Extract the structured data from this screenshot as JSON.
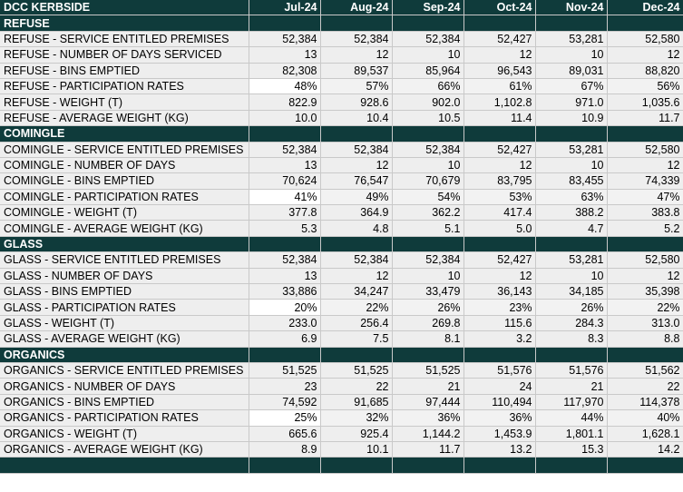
{
  "title": "DCC KERBSIDE",
  "months": [
    "Jul-24",
    "Aug-24",
    "Sep-24",
    "Oct-24",
    "Nov-24",
    "Dec-24"
  ],
  "sections": [
    {
      "name": "REFUSE",
      "rows": [
        {
          "label": "REFUSE - SERVICE ENTITLED PREMISES",
          "values": [
            "52,384",
            "52,384",
            "52,384",
            "52,427",
            "53,281",
            "52,580"
          ]
        },
        {
          "label": "REFUSE - NUMBER OF DAYS SERVICED",
          "values": [
            "13",
            "12",
            "10",
            "12",
            "10",
            "12"
          ]
        },
        {
          "label": "REFUSE - BINS EMPTIED",
          "values": [
            "82,308",
            "89,537",
            "85,964",
            "96,543",
            "89,031",
            "88,820"
          ]
        },
        {
          "label": "REFUSE - PARTICIPATION RATES",
          "values": [
            "48%",
            "57%",
            "66%",
            "61%",
            "67%",
            "56%"
          ]
        },
        {
          "label": "REFUSE - WEIGHT (T)",
          "values": [
            "822.9",
            "928.6",
            "902.0",
            "1,102.8",
            "971.0",
            "1,035.6"
          ]
        },
        {
          "label": "REFUSE - AVERAGE WEIGHT (KG)",
          "values": [
            "10.0",
            "10.4",
            "10.5",
            "11.4",
            "10.9",
            "11.7"
          ]
        }
      ]
    },
    {
      "name": "COMINGLE",
      "rows": [
        {
          "label": "COMINGLE - SERVICE ENTITLED PREMISES",
          "values": [
            "52,384",
            "52,384",
            "52,384",
            "52,427",
            "53,281",
            "52,580"
          ]
        },
        {
          "label": "COMINGLE - NUMBER OF DAYS",
          "values": [
            "13",
            "12",
            "10",
            "12",
            "10",
            "12"
          ]
        },
        {
          "label": "COMINGLE - BINS EMPTIED",
          "values": [
            "70,624",
            "76,547",
            "70,679",
            "83,795",
            "83,455",
            "74,339"
          ]
        },
        {
          "label": "COMINGLE - PARTICIPATION RATES",
          "values": [
            "41%",
            "49%",
            "54%",
            "53%",
            "63%",
            "47%"
          ]
        },
        {
          "label": "COMINGLE - WEIGHT (T)",
          "values": [
            "377.8",
            "364.9",
            "362.2",
            "417.4",
            "388.2",
            "383.8"
          ]
        },
        {
          "label": "COMINGLE - AVERAGE WEIGHT (KG)",
          "values": [
            "5.3",
            "4.8",
            "5.1",
            "5.0",
            "4.7",
            "5.2"
          ]
        }
      ]
    },
    {
      "name": "GLASS",
      "rows": [
        {
          "label": "GLASS - SERVICE ENTITLED PREMISES",
          "values": [
            "52,384",
            "52,384",
            "52,384",
            "52,427",
            "53,281",
            "52,580"
          ]
        },
        {
          "label": "GLASS - NUMBER OF DAYS",
          "values": [
            "13",
            "12",
            "10",
            "12",
            "10",
            "12"
          ]
        },
        {
          "label": "GLASS - BINS EMPTIED",
          "values": [
            "33,886",
            "34,247",
            "33,479",
            "36,143",
            "34,185",
            "35,398"
          ]
        },
        {
          "label": "GLASS - PARTICIPATION RATES",
          "values": [
            "20%",
            "22%",
            "26%",
            "23%",
            "26%",
            "22%"
          ]
        },
        {
          "label": "GLASS - WEIGHT (T)",
          "values": [
            "233.0",
            "256.4",
            "269.8",
            "115.6",
            "284.3",
            "313.0"
          ]
        },
        {
          "label": "GLASS - AVERAGE WEIGHT (KG)",
          "values": [
            "6.9",
            "7.5",
            "8.1",
            "3.2",
            "8.3",
            "8.8"
          ]
        }
      ]
    },
    {
      "name": "ORGANICS",
      "rows": [
        {
          "label": "ORGANICS - SERVICE ENTITLED PREMISES",
          "values": [
            "51,525",
            "51,525",
            "51,525",
            "51,576",
            "51,576",
            "51,562"
          ]
        },
        {
          "label": "ORGANICS - NUMBER OF DAYS",
          "values": [
            "23",
            "22",
            "21",
            "24",
            "21",
            "22"
          ]
        },
        {
          "label": "ORGANICS - BINS EMPTIED",
          "values": [
            "74,592",
            "91,685",
            "97,444",
            "110,494",
            "117,970",
            "114,378"
          ]
        },
        {
          "label": "ORGANICS - PARTICIPATION RATES",
          "values": [
            "25%",
            "32%",
            "36%",
            "36%",
            "44%",
            "40%"
          ]
        },
        {
          "label": "ORGANICS - WEIGHT (T)",
          "values": [
            "665.6",
            "925.4",
            "1,144.2",
            "1,453.9",
            "1,801.1",
            "1,628.1"
          ]
        },
        {
          "label": "ORGANICS - AVERAGE WEIGHT (KG)",
          "values": [
            "8.9",
            "10.1",
            "11.7",
            "13.2",
            "15.3",
            "14.2"
          ]
        }
      ]
    }
  ],
  "colors": {
    "header_bg": "#0f3b3b",
    "header_text": "#ffffff",
    "row_bg": "#eeeeee"
  }
}
